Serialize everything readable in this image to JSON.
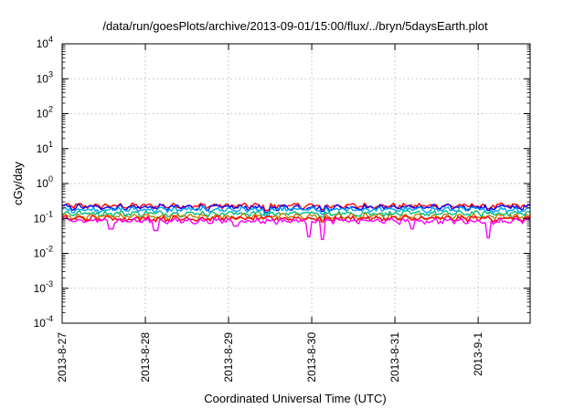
{
  "chart_data": {
    "type": "line",
    "title": "/data/run/goesPlots/archive/2013-09-01/15:00/flux/../bryn/5daysEarth.plot",
    "xlabel": "Coordinated Universal Time (UTC)",
    "ylabel": "cGy/day",
    "yscale": "log",
    "ylim": [
      0.0001,
      10000
    ],
    "xlim": [
      "2013-08-27T00:00",
      "2013-09-01T15:00"
    ],
    "y_ticks": [
      {
        "base": "10",
        "exp": "-4",
        "value": 0.0001
      },
      {
        "base": "10",
        "exp": "-3",
        "value": 0.001
      },
      {
        "base": "10",
        "exp": "-2",
        "value": 0.01
      },
      {
        "base": "10",
        "exp": "-1",
        "value": 0.1
      },
      {
        "base": "10",
        "exp": "0",
        "value": 1
      },
      {
        "base": "10",
        "exp": "1",
        "value": 10
      },
      {
        "base": "10",
        "exp": "2",
        "value": 100
      },
      {
        "base": "10",
        "exp": "3",
        "value": 1000
      },
      {
        "base": "10",
        "exp": "4",
        "value": 10000
      }
    ],
    "x_ticks": [
      {
        "label": "2013-8-27",
        "value": "2013-08-27"
      },
      {
        "label": "2013-8-28",
        "value": "2013-08-28"
      },
      {
        "label": "2013-8-29",
        "value": "2013-08-29"
      },
      {
        "label": "2013-8-30",
        "value": "2013-08-30"
      },
      {
        "label": "2013-8-31",
        "value": "2013-08-31"
      },
      {
        "label": "2013-9-1",
        "value": "2013-09-01"
      }
    ],
    "grid": true,
    "series": [
      {
        "color": "#ff0000",
        "base": 0.23,
        "dips": [
          [
            "2013-08-29T11:00",
            0.17
          ],
          [
            "2013-08-30T03:00",
            0.18
          ],
          [
            "2013-09-01T03:00",
            0.19
          ]
        ]
      },
      {
        "color": "#0000ff",
        "base": 0.21,
        "dips": [
          [
            "2013-08-29T11:00",
            0.15
          ],
          [
            "2013-08-30T03:00",
            0.16
          ],
          [
            "2013-09-01T03:00",
            0.17
          ]
        ]
      },
      {
        "color": "#00a0ff",
        "base": 0.18,
        "dips": [
          [
            "2013-08-29T11:00",
            0.12
          ],
          [
            "2013-08-30T03:00",
            0.13
          ],
          [
            "2013-09-01T03:00",
            0.14
          ]
        ]
      },
      {
        "color": "#00c080",
        "base": 0.14,
        "dips": [
          [
            "2013-08-30T03:00",
            0.11
          ]
        ]
      },
      {
        "color": "#b8860b",
        "base": 0.115,
        "dips": [
          [
            "2013-08-30T03:00",
            0.09
          ]
        ]
      },
      {
        "color": "#ff0000",
        "base": 0.1,
        "dips": [
          [
            "2013-08-30T03:00",
            0.08
          ]
        ]
      },
      {
        "color": "#ff00ff",
        "base": 0.085,
        "dips": [
          [
            "2013-08-27T14:00",
            0.05
          ],
          [
            "2013-08-28T03:00",
            0.045
          ],
          [
            "2013-08-29T02:00",
            0.06
          ],
          [
            "2013-08-29T23:00",
            0.03
          ],
          [
            "2013-08-30T03:00",
            0.025
          ],
          [
            "2013-08-31T05:00",
            0.05
          ],
          [
            "2013-09-01T03:00",
            0.028
          ]
        ]
      }
    ]
  }
}
